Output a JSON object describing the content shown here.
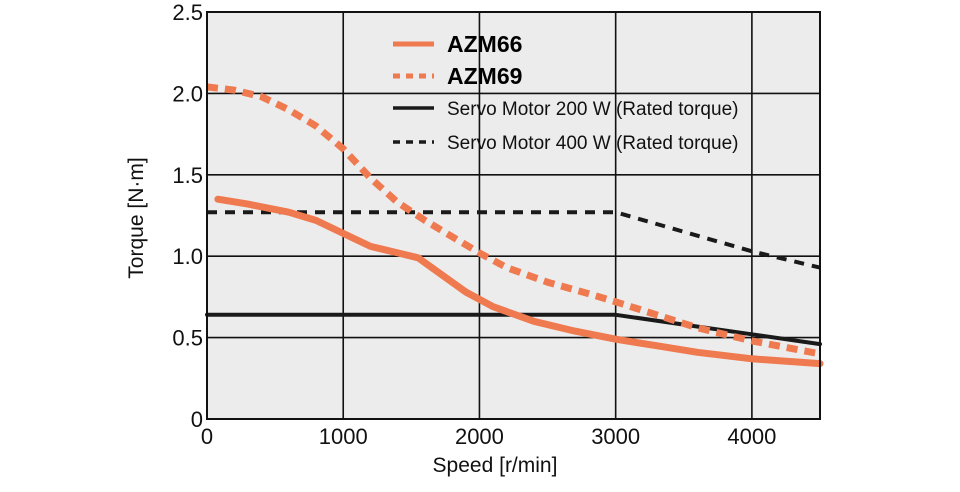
{
  "chart_data": {
    "type": "line",
    "title": "",
    "xlabel": "Speed [r/min]",
    "ylabel": "Torque [N·m]",
    "xlim": [
      0,
      4500
    ],
    "ylim": [
      0,
      2.5
    ],
    "xticks": [
      0,
      1000,
      2000,
      3000,
      4000
    ],
    "xtick_labels": [
      "0",
      "1000",
      "2000",
      "3000",
      "4000"
    ],
    "yticks": [
      0,
      0.5,
      1.0,
      1.5,
      2.0,
      2.5
    ],
    "ytick_labels": [
      "0",
      "0.5",
      "1.0",
      "1.5",
      "2.0",
      "2.5"
    ],
    "grid": true,
    "legend_position": "top-right",
    "colors": {
      "azm": "#f07a4f",
      "servo": "#1a1a1a",
      "plot_bg": "#ececec",
      "grid": "#111111"
    },
    "series": [
      {
        "name": "AZM66",
        "style": "solid",
        "color": "#f07a4f",
        "emphasis": true,
        "points": [
          [
            80,
            1.35
          ],
          [
            300,
            1.32
          ],
          [
            600,
            1.27
          ],
          [
            800,
            1.22
          ],
          [
            1000,
            1.14
          ],
          [
            1200,
            1.06
          ],
          [
            1400,
            1.02
          ],
          [
            1550,
            0.99
          ],
          [
            1700,
            0.9
          ],
          [
            1900,
            0.78
          ],
          [
            2100,
            0.69
          ],
          [
            2400,
            0.6
          ],
          [
            2700,
            0.54
          ],
          [
            3000,
            0.49
          ],
          [
            3300,
            0.45
          ],
          [
            3600,
            0.41
          ],
          [
            4000,
            0.37
          ],
          [
            4500,
            0.34
          ]
        ]
      },
      {
        "name": "AZM69",
        "style": "dashed",
        "color": "#f07a4f",
        "emphasis": true,
        "points": [
          [
            0,
            2.04
          ],
          [
            200,
            2.02
          ],
          [
            400,
            1.98
          ],
          [
            600,
            1.9
          ],
          [
            800,
            1.8
          ],
          [
            1000,
            1.66
          ],
          [
            1200,
            1.48
          ],
          [
            1400,
            1.33
          ],
          [
            1600,
            1.22
          ],
          [
            1800,
            1.12
          ],
          [
            2000,
            1.02
          ],
          [
            2200,
            0.93
          ],
          [
            2500,
            0.84
          ],
          [
            2800,
            0.77
          ],
          [
            3000,
            0.72
          ],
          [
            3300,
            0.64
          ],
          [
            3600,
            0.56
          ],
          [
            4000,
            0.48
          ],
          [
            4500,
            0.4
          ]
        ]
      },
      {
        "name": "Servo Motor 200 W (Rated torque)",
        "style": "solid",
        "color": "#1a1a1a",
        "emphasis": false,
        "points": [
          [
            0,
            0.64
          ],
          [
            3000,
            0.64
          ],
          [
            3500,
            0.58
          ],
          [
            4000,
            0.52
          ],
          [
            4500,
            0.46
          ]
        ]
      },
      {
        "name": "Servo Motor 400 W (Rated torque)",
        "style": "dashed",
        "color": "#1a1a1a",
        "emphasis": false,
        "points": [
          [
            0,
            1.27
          ],
          [
            3000,
            1.27
          ],
          [
            3500,
            1.15
          ],
          [
            4000,
            1.03
          ],
          [
            4500,
            0.93
          ]
        ]
      }
    ]
  }
}
